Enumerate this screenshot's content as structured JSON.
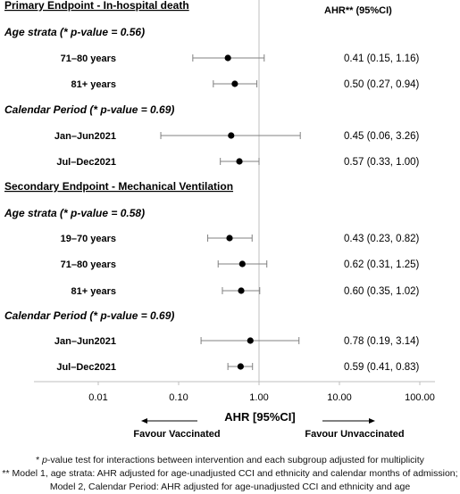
{
  "chart_data": {
    "type": "forest",
    "value_header": "AHR** (95%CI)",
    "x_axis": {
      "scale": "log",
      "ticks": [
        0.01,
        0.1,
        1,
        10,
        100
      ],
      "tick_labels": [
        "0.01",
        "0.10",
        "1.00",
        "10.00",
        "100.00"
      ],
      "range": [
        0.01,
        100
      ],
      "label": "AHR [95%CI]",
      "reference_line": 1,
      "favour_left": "Favour Vaccinated",
      "favour_right": "Favour Unvaccinated"
    },
    "sections": [
      {
        "title": "Primary Endpoint - In-hospital death",
        "groups": [
          {
            "subtitle_main": "Age strata (",
            "subtitle_p": "* p-value = 0.56)",
            "rows": [
              {
                "label": "71–80 years",
                "est": 0.41,
                "lo": 0.15,
                "hi": 1.16,
                "text": "0.41 (0.15, 1.16)"
              },
              {
                "label": "81+ years",
                "est": 0.5,
                "lo": 0.27,
                "hi": 0.94,
                "text": "0.50 (0.27, 0.94)"
              }
            ]
          },
          {
            "subtitle_main": "Calendar Period (",
            "subtitle_p": "* p-value = 0.69)",
            "rows": [
              {
                "label": "Jan–Jun2021",
                "est": 0.45,
                "lo": 0.06,
                "hi": 3.26,
                "text": "0.45 (0.06, 3.26)"
              },
              {
                "label": "Jul–Dec2021",
                "est": 0.57,
                "lo": 0.33,
                "hi": 1.0,
                "text": "0.57 (0.33, 1.00)"
              }
            ]
          }
        ]
      },
      {
        "title": "Secondary Endpoint - Mechanical Ventilation",
        "groups": [
          {
            "subtitle_main": "Age strata (",
            "subtitle_p": "* p-value = 0.58)",
            "rows": [
              {
                "label": "19–70 years",
                "est": 0.43,
                "lo": 0.23,
                "hi": 0.82,
                "text": "0.43 (0.23, 0.82)"
              },
              {
                "label": "71–80 years",
                "est": 0.62,
                "lo": 0.31,
                "hi": 1.25,
                "text": "0.62 (0.31, 1.25)"
              },
              {
                "label": "81+ years",
                "est": 0.6,
                "lo": 0.35,
                "hi": 1.02,
                "text": "0.60 (0.35, 1.02)"
              }
            ]
          },
          {
            "subtitle_main": "Calendar Period (",
            "subtitle_p": "* p-value = 0.69)",
            "rows": [
              {
                "label": "Jan–Jun2021",
                "est": 0.78,
                "lo": 0.19,
                "hi": 3.14,
                "text": "0.78 (0.19, 3.14)"
              },
              {
                "label": "Jul–Dec2021",
                "est": 0.59,
                "lo": 0.41,
                "hi": 0.83,
                "text": "0.59 (0.41, 0.83)"
              }
            ]
          }
        ]
      }
    ]
  },
  "footnotes": {
    "line1_star": "* ",
    "line1_italic": "p",
    "line1_rest": "-value test for interactions between intervention and each subgroup adjusted for multiplicity",
    "line2": "** Model 1, age strata: AHR adjusted for age-unadjusted CCI and ethnicity and calendar months of admission;",
    "line3": "Model 2, Calendar Period: AHR adjusted for age-unadjusted CCI and ethnicity and age"
  },
  "colors": {
    "marker": "#000000",
    "ci_line": "#808080",
    "reference_line": "#bfbfbf",
    "axis": "#bfbfbf"
  }
}
